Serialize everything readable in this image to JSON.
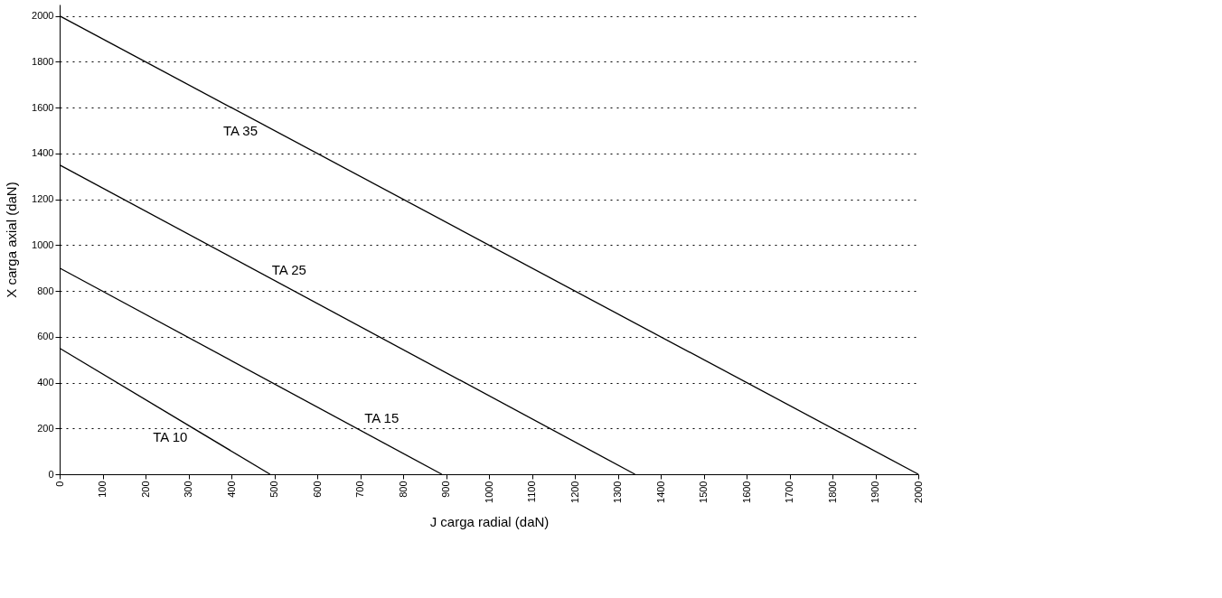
{
  "chart_data": {
    "type": "line",
    "xlabel": "J carga radial (daN)",
    "ylabel": "X carga axial (daN)",
    "series": [
      {
        "name": "TA 10",
        "color": "#000000",
        "x": [
          0,
          490
        ],
        "values": [
          550,
          0
        ]
      },
      {
        "name": "TA 15",
        "color": "#000000",
        "x": [
          0,
          890
        ],
        "values": [
          900,
          0
        ]
      },
      {
        "name": "TA 25",
        "color": "#000000",
        "x": [
          0,
          1340
        ],
        "values": [
          1350,
          0
        ]
      },
      {
        "name": "TA 35",
        "color": "#000000",
        "x": [
          0,
          2000
        ],
        "values": [
          2000,
          0
        ]
      }
    ],
    "xlim": [
      0,
      2000
    ],
    "xticks": [
      0,
      100,
      200,
      300,
      400,
      500,
      600,
      700,
      800,
      900,
      1000,
      1100,
      1200,
      1300,
      1400,
      1500,
      1600,
      1700,
      1800,
      1900,
      2000
    ],
    "ylim": [
      0,
      2050
    ],
    "yticks": [
      0,
      200,
      400,
      600,
      800,
      1000,
      1200,
      1400,
      1600,
      1800,
      2000
    ],
    "grid": "y",
    "legend": false,
    "marker": "none",
    "line_style": "solid"
  }
}
